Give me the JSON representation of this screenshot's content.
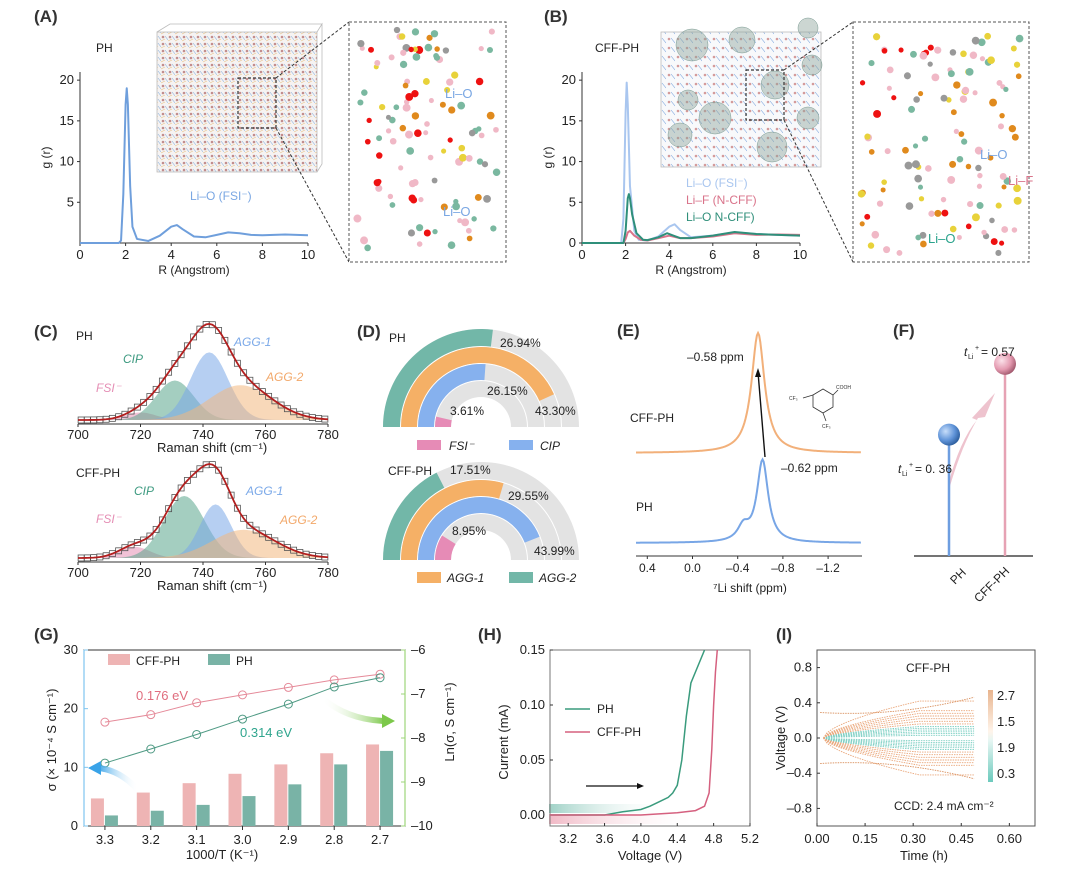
{
  "chart_data": [
    {
      "panel": "A",
      "type": "line",
      "title": "PH",
      "xlabel": "R (Angstrom)",
      "ylabel": "g (r)",
      "xlim": [
        0,
        10
      ],
      "ylim": [
        0,
        21
      ],
      "xticks": [
        "0",
        "2",
        "4",
        "6",
        "8",
        "10"
      ],
      "yticks": [
        "5",
        "10",
        "15",
        "20"
      ],
      "series": [
        {
          "name": "Li–O (FSI⁻)",
          "color": "#6f9fdc",
          "x": [
            0,
            1.7,
            1.8,
            1.9,
            2.0,
            2.05,
            2.1,
            2.2,
            2.3,
            2.5,
            3.0,
            3.5,
            4.0,
            4.25,
            4.5,
            5.0,
            5.5,
            6.0,
            6.5,
            7.0,
            7.5,
            8.0,
            8.5,
            9.0,
            10.0
          ],
          "y": [
            0,
            0,
            0.3,
            6,
            17,
            19,
            17,
            7,
            2,
            0.5,
            0.25,
            0.9,
            2.0,
            2.2,
            1.7,
            0.8,
            0.7,
            1.0,
            1.3,
            1.2,
            1.0,
            0.95,
            1.0,
            1.05,
            0.95
          ]
        }
      ],
      "annotations": [
        "Li–O (FSI⁻)"
      ],
      "insets": {
        "zoom_labels": [
          "Li–O",
          "Li–O"
        ]
      }
    },
    {
      "panel": "B",
      "type": "line",
      "title": "CFF-PH",
      "xlabel": "R (Angstrom)",
      "ylabel": "g (r)",
      "xlim": [
        0,
        10
      ],
      "ylim": [
        0,
        21
      ],
      "xticks": [
        "0",
        "2",
        "4",
        "6",
        "8",
        "10"
      ],
      "yticks": [
        "0",
        "5",
        "10",
        "15",
        "20"
      ],
      "series": [
        {
          "name": "Li–O (FSI⁻)",
          "color": "#a9c6ef",
          "x": [
            0,
            1.8,
            1.9,
            2.0,
            2.05,
            2.1,
            2.2,
            2.4,
            2.6,
            3.0,
            3.5,
            4.0,
            4.25,
            4.5,
            5.0,
            6.0,
            7.0,
            8.0,
            9.0,
            10.0
          ],
          "y": [
            0,
            0,
            3,
            16,
            19.7,
            17,
            7,
            1.5,
            0.4,
            0.3,
            0.8,
            2.0,
            2.3,
            1.6,
            0.7,
            0.9,
            1.3,
            1.1,
            1.0,
            0.9
          ]
        },
        {
          "name": "Li–F (N-CFF)",
          "color": "#d9738a",
          "x": [
            0,
            1.9,
            2.0,
            2.1,
            2.2,
            2.4,
            2.7,
            3.0,
            3.5,
            4.0,
            4.5,
            5.0,
            6.0,
            7.0,
            8.0,
            9.0,
            10.0
          ],
          "y": [
            0,
            0,
            0.5,
            1.3,
            1.5,
            0.9,
            0.4,
            0.3,
            0.6,
            0.9,
            0.6,
            0.6,
            0.8,
            1.2,
            1.0,
            1.05,
            1.0
          ]
        },
        {
          "name": "Li–O N-CFF)",
          "color": "#2f8f7a",
          "x": [
            0,
            1.9,
            2.0,
            2.1,
            2.15,
            2.2,
            2.3,
            2.5,
            2.8,
            3.0,
            3.5,
            3.9,
            4.2,
            4.5,
            5.0,
            6.0,
            7.0,
            8.0,
            9.0,
            10.0
          ],
          "y": [
            0,
            0,
            1.5,
            5.5,
            6.0,
            5.5,
            3.5,
            1.2,
            0.4,
            0.35,
            0.7,
            1.2,
            0.9,
            0.6,
            0.6,
            0.9,
            1.35,
            1.1,
            1.0,
            0.9
          ]
        }
      ],
      "insets": {
        "zoom_labels": [
          "Li–O",
          "Li–F",
          "Li–O"
        ]
      }
    },
    {
      "panel": "C",
      "type": "area",
      "subplots": [
        {
          "title": "PH",
          "xlabel": "Raman shift (cm⁻¹)",
          "xlim": [
            700,
            780
          ],
          "xticks": [
            "700",
            "720",
            "740",
            "760",
            "780"
          ],
          "components": [
            {
              "name": "FSI⁻",
              "color": "#e58fb5",
              "center": 720,
              "height": 0.08,
              "width": 5
            },
            {
              "name": "CIP",
              "color": "#5aa58c",
              "center": 731,
              "height": 0.42,
              "width": 6
            },
            {
              "name": "AGG-1",
              "color": "#7aa8e8",
              "center": 742,
              "height": 0.72,
              "width": 6
            },
            {
              "name": "AGG-2",
              "color": "#f2b880",
              "center": 752,
              "height": 0.37,
              "width": 10
            }
          ],
          "fit_peak": 742
        },
        {
          "title": "CFF-PH",
          "xlabel": "Raman shift (cm⁻¹)",
          "xlim": [
            700,
            780
          ],
          "xticks": [
            "700",
            "720",
            "740",
            "760",
            "780"
          ],
          "components": [
            {
              "name": "FSI⁻",
              "color": "#e58fb5",
              "center": 718,
              "height": 0.12,
              "width": 5
            },
            {
              "name": "CIP",
              "color": "#5aa58c",
              "center": 734,
              "height": 0.66,
              "width": 6.5
            },
            {
              "name": "AGG-1",
              "color": "#7aa8e8",
              "center": 744,
              "height": 0.57,
              "width": 5
            },
            {
              "name": "AGG-2",
              "color": "#f2b880",
              "center": 753,
              "height": 0.3,
              "width": 10
            }
          ],
          "fit_peak": 740
        }
      ]
    },
    {
      "panel": "D",
      "type": "pie",
      "style": "radial-bar (half-donut)",
      "subplots": [
        {
          "title": "PH",
          "series": [
            {
              "name": "AGG-2",
              "value": 26.94,
              "color": "#72b7a8"
            },
            {
              "name": "AGG-1",
              "value": 43.3,
              "color": "#f5b066"
            },
            {
              "name": "CIP",
              "value": 26.15,
              "color": "#86b1ee"
            },
            {
              "name": "FSI⁻",
              "value": 3.61,
              "color": "#e68bb6"
            }
          ]
        },
        {
          "title": "CFF-PH",
          "series": [
            {
              "name": "AGG-2",
              "value": 17.51,
              "color": "#72b7a8"
            },
            {
              "name": "AGG-1",
              "value": 29.55,
              "color": "#f5b066"
            },
            {
              "name": "CIP",
              "value": 43.99,
              "color": "#86b1ee"
            },
            {
              "name": "FSI⁻",
              "value": 8.95,
              "color": "#e68bb6"
            }
          ]
        }
      ],
      "legend": [
        "FSI⁻",
        "CIP",
        "AGG-1",
        "AGG-2"
      ]
    },
    {
      "panel": "E",
      "type": "line",
      "xlabel": "⁷Li shift (ppm)",
      "xlim": [
        0.5,
        -1.5
      ],
      "xticks": [
        "0.4",
        "0.0",
        "–0.4",
        "–0.8",
        "–1.2"
      ],
      "series": [
        {
          "name": "CFF-PH",
          "color": "#f2b07a",
          "peak": -0.58
        },
        {
          "name": "PH",
          "color": "#78a6e6",
          "peak": -0.62,
          "shoulder": -0.45
        }
      ],
      "annotations": [
        "–0.58 ppm",
        "–0.62 ppm"
      ]
    },
    {
      "panel": "F",
      "type": "scatter",
      "style": "lollipop",
      "categories": [
        "PH",
        "CFF-PH"
      ],
      "values": [
        0.36,
        0.57
      ],
      "labels": [
        "t_Li+ = 0. 36",
        "t_Li+ = 0.57"
      ],
      "colors": [
        "#6e9ee0",
        "#e6a2b4"
      ]
    },
    {
      "panel": "G",
      "type": "bar",
      "xlabel": "1000/T (K⁻¹)",
      "ylabel": "σ (× 10⁻⁴ S cm⁻¹)",
      "ylabel_right": "Ln(σ, S cm⁻¹)",
      "categories": [
        "3.3",
        "3.2",
        "3.1",
        "3.0",
        "2.9",
        "2.8",
        "2.7"
      ],
      "ylim": [
        0,
        30
      ],
      "yticks": [
        "0",
        "10",
        "20",
        "30"
      ],
      "ylim_right": [
        -10,
        -6
      ],
      "yticks_right": [
        "–6",
        "–7",
        "–8",
        "–9",
        "–10"
      ],
      "series": [
        {
          "name": "CFF-PH",
          "color": "#eeb4b4",
          "values": [
            4.7,
            5.7,
            7.3,
            8.9,
            10.5,
            12.4,
            13.9
          ]
        },
        {
          "name": "PH",
          "color": "#79b3a6",
          "values": [
            1.8,
            2.6,
            3.6,
            5.1,
            7.1,
            10.5,
            12.8
          ]
        }
      ],
      "lines": [
        {
          "name": "CFF-PH Arrhenius",
          "color": "#e58a99",
          "ea": "0.176 eV",
          "ln_values": [
            -7.64,
            -7.47,
            -7.2,
            -7.02,
            -6.85,
            -6.68,
            -6.55
          ]
        },
        {
          "name": "PH Arrhenius",
          "color": "#4f9a84",
          "ea": "0.314 eV",
          "ln_values": [
            -8.57,
            -8.25,
            -7.92,
            -7.57,
            -7.23,
            -6.84,
            -6.63
          ]
        }
      ]
    },
    {
      "panel": "H",
      "type": "line",
      "xlabel": "Voltage (V)",
      "ylabel": "Current (mA)",
      "xlim": [
        3.0,
        5.2
      ],
      "ylim": [
        -0.01,
        0.15
      ],
      "xticks": [
        "3.2",
        "3.6",
        "4.0",
        "4.4",
        "4.8",
        "5.2"
      ],
      "yticks": [
        "0.00",
        "0.05",
        "0.10",
        "0.15"
      ],
      "series": [
        {
          "name": "PH",
          "color": "#3a9b7d",
          "x": [
            3.0,
            3.6,
            3.8,
            4.0,
            4.1,
            4.2,
            4.3,
            4.35,
            4.4,
            4.45,
            4.5,
            4.55,
            4.6,
            4.65,
            4.7
          ],
          "y": [
            0,
            0,
            0.003,
            0.005,
            0.008,
            0.012,
            0.016,
            0.02,
            0.027,
            0.05,
            0.09,
            0.12,
            0.13,
            0.14,
            0.15
          ]
        },
        {
          "name": "CFF-PH",
          "color": "#d5607f",
          "x": [
            3.0,
            4.0,
            4.4,
            4.6,
            4.7,
            4.75,
            4.78,
            4.8,
            4.82,
            4.84
          ],
          "y": [
            0,
            0,
            0.002,
            0.004,
            0.008,
            0.02,
            0.06,
            0.1,
            0.13,
            0.15
          ]
        }
      ]
    },
    {
      "panel": "I",
      "type": "line",
      "title": "CFF-PH",
      "xlabel": "Time (h)",
      "ylabel": "Voltage (V)",
      "xlim": [
        0,
        0.68
      ],
      "ylim": [
        -1.0,
        1.0
      ],
      "xticks": [
        "0.00",
        "0.15",
        "0.30",
        "0.45",
        "0.60"
      ],
      "yticks": [
        "0.8",
        "0.4",
        "0.0",
        "–0.4",
        "–0.8"
      ],
      "colorbar": {
        "ticks": [
          "2.7",
          "1.5",
          "1.9",
          "0.3"
        ]
      },
      "annotation": "CCD: 2.4 mA cm⁻²"
    }
  ],
  "panels": {
    "A": {
      "label": "(A)",
      "title": "PH",
      "xlabel": "R (Angstrom)",
      "ylabel": "g (r)",
      "legend": "Li–O (FSI⁻)",
      "zoom_lbl1": "Li–O",
      "zoom_lbl2": "Li–O"
    },
    "B": {
      "label": "(B)",
      "title": "CFF-PH",
      "xlabel": "R (Angstrom)",
      "ylabel": "g (r)",
      "leg1": "Li–O (FSI⁻)",
      "leg2": "Li–F (N-CFF)",
      "leg3": "Li–O N-CFF)",
      "zoom_lbl1": "Li–O",
      "zoom_lbl2": "Li–F",
      "zoom_lbl3": "Li–O"
    },
    "C": {
      "label": "(C)",
      "top": "PH",
      "bottom": "CFF-PH",
      "xlabel": "Raman shift (cm⁻¹)",
      "fsi": "FSI⁻",
      "cip": "CIP",
      "agg1": "AGG-1",
      "agg2": "AGG-2"
    },
    "D": {
      "label": "(D)",
      "top": "PH",
      "bottom": "CFF-PH",
      "pct": [
        "26.94%",
        "26.15%",
        "3.61%",
        "43.30%",
        "17.51%",
        "29.55%",
        "8.95%",
        "43.99%"
      ],
      "leg": [
        "FSI⁻",
        "CIP",
        "AGG-1",
        "AGG-2"
      ]
    },
    "E": {
      "label": "(E)",
      "top": "CFF-PH",
      "bottom": "PH",
      "ann1": "–0.58 ppm",
      "ann2": "–0.62 ppm",
      "xlabel": "⁷Li shift (ppm)",
      "cooh": "COOH",
      "cf3": "CF₃"
    },
    "F": {
      "label": "(F)",
      "t1": "= 0. 36",
      "t2": "= 0.57",
      "t": "t",
      "sub": "Li",
      "sup": "+",
      "cat1": "PH",
      "cat2": "CFF-PH"
    },
    "G": {
      "label": "(G)",
      "ea1": "0.176 eV",
      "ea2": "0.314 eV",
      "leg1": "CFF-PH",
      "leg2": "PH",
      "xlabel": "1000/T (K⁻¹)",
      "ylabel": "σ (× 10⁻⁴ S cm⁻¹)",
      "ylabel_r": "Ln(σ, S cm⁻¹)"
    },
    "H": {
      "label": "(H)",
      "leg1": "PH",
      "leg2": "CFF-PH",
      "xlabel": "Voltage (V)",
      "ylabel": "Current (mA)"
    },
    "I": {
      "label": "(I)",
      "title": "CFF-PH",
      "ann": "CCD: 2.4 mA cm⁻²",
      "xlabel": "Time (h)",
      "ylabel": "Voltage (V)"
    }
  }
}
